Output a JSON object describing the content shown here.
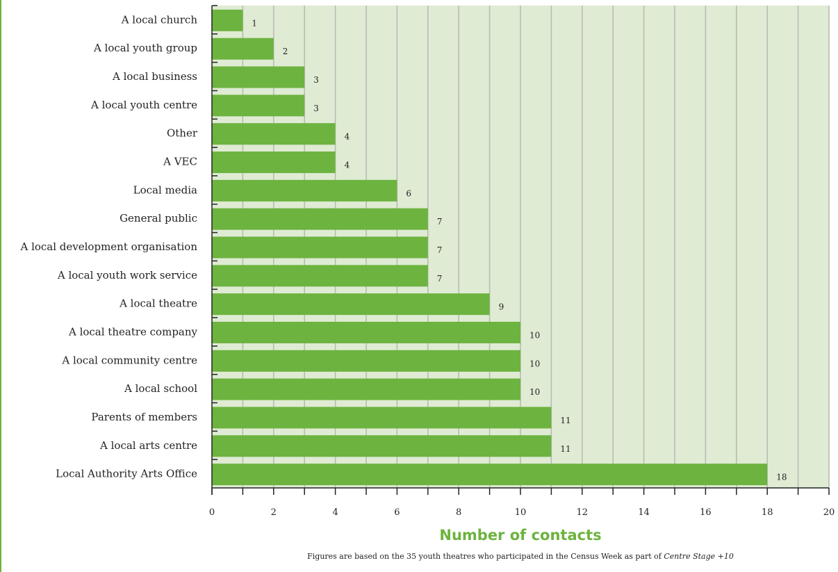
{
  "chart_data": {
    "type": "bar",
    "orientation": "horizontal",
    "categories": [
      "A local church",
      "A local youth group",
      "A local business",
      "A local youth centre",
      "Other",
      "A VEC",
      "Local media",
      "General public",
      "A local development organisation",
      "A local youth work service",
      "A local theatre",
      "A local theatre company",
      "A local community centre",
      "A local school",
      "Parents of members",
      "A local arts centre",
      "Local Authority Arts Office"
    ],
    "values": [
      1,
      2,
      3,
      3,
      4,
      4,
      6,
      7,
      7,
      7,
      9,
      10,
      10,
      10,
      11,
      11,
      18
    ],
    "value_labels": [
      "1",
      "2",
      "3",
      "3",
      "4",
      "4",
      "6",
      "7",
      "7",
      "7",
      "9",
      "10",
      "10",
      "10",
      "11",
      "11",
      "18"
    ],
    "xlabel": "Number of contacts",
    "xlim": [
      0,
      20
    ],
    "xticks": [
      0,
      2,
      4,
      6,
      8,
      10,
      12,
      14,
      16,
      18,
      20
    ],
    "xtick_labels": [
      "0",
      "2",
      "4",
      "6",
      "8",
      "10",
      "12",
      "14",
      "16",
      "18",
      "20"
    ],
    "grid": "vertical",
    "legend": "none",
    "colors": {
      "bar": "#6db33f",
      "plot_background": "#dfebd3",
      "gridline": "#b4b9b2",
      "axis_title": "#6db33f"
    }
  },
  "footnote": {
    "text": "Figures are based on the 35 youth theatres who participated in the Census Week as part of ",
    "emphasis": "Centre Stage +10"
  }
}
